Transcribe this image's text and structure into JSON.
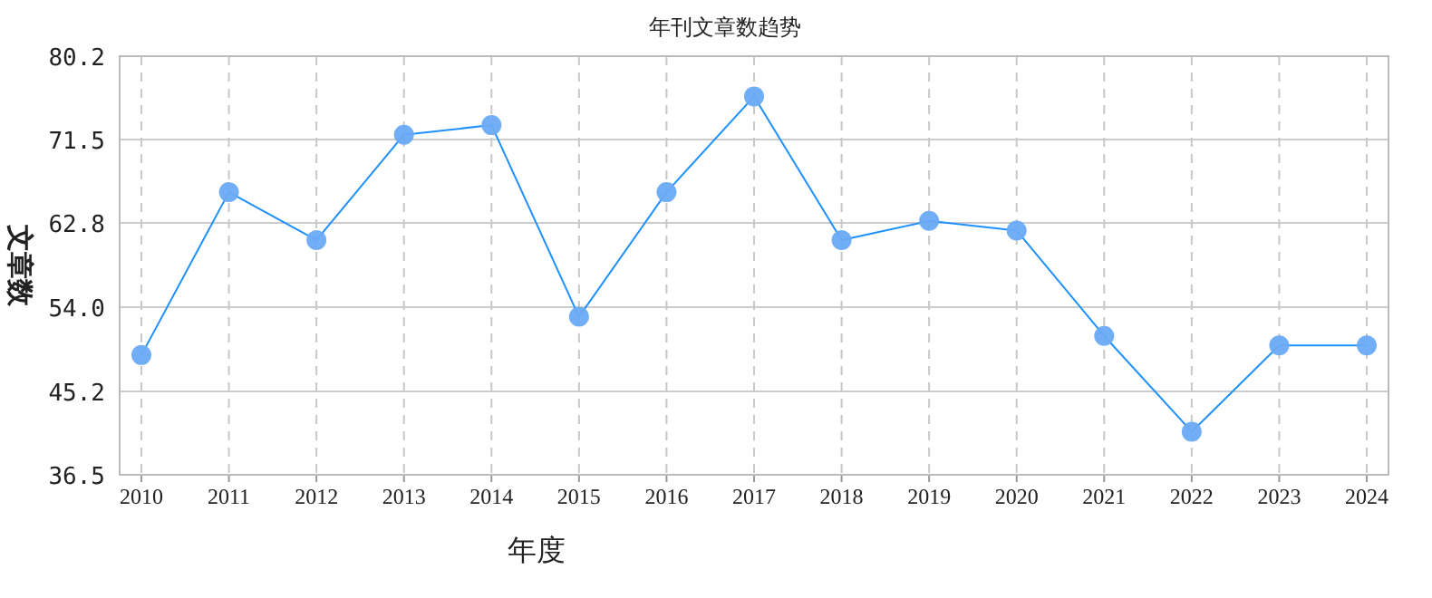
{
  "chart_data": {
    "type": "line",
    "title": "年刊文章数趋势",
    "xlabel": "年度",
    "ylabel": "文章数",
    "categories": [
      "2010",
      "2011",
      "2012",
      "2013",
      "2014",
      "2015",
      "2016",
      "2017",
      "2018",
      "2019",
      "2020",
      "2021",
      "2022",
      "2023",
      "2024"
    ],
    "series": [
      {
        "color": "#1e90ff",
        "values": [
          49,
          66,
          61,
          72,
          73,
          53,
          66,
          76,
          61,
          63,
          62,
          51,
          41,
          50,
          50
        ]
      }
    ],
    "ylim": [
      36.5,
      80.2
    ],
    "yticks": [
      {
        "value": 36.5,
        "label": "36.5"
      },
      {
        "value": 45.2,
        "label": "45.2"
      },
      {
        "value": 54.0,
        "label": "54.0"
      },
      {
        "value": 62.8,
        "label": "62.8"
      },
      {
        "value": 71.5,
        "label": "71.5"
      },
      {
        "value": 80.2,
        "label": "80.2"
      }
    ],
    "grid": true,
    "marker": "circle",
    "line_style": "solid"
  }
}
